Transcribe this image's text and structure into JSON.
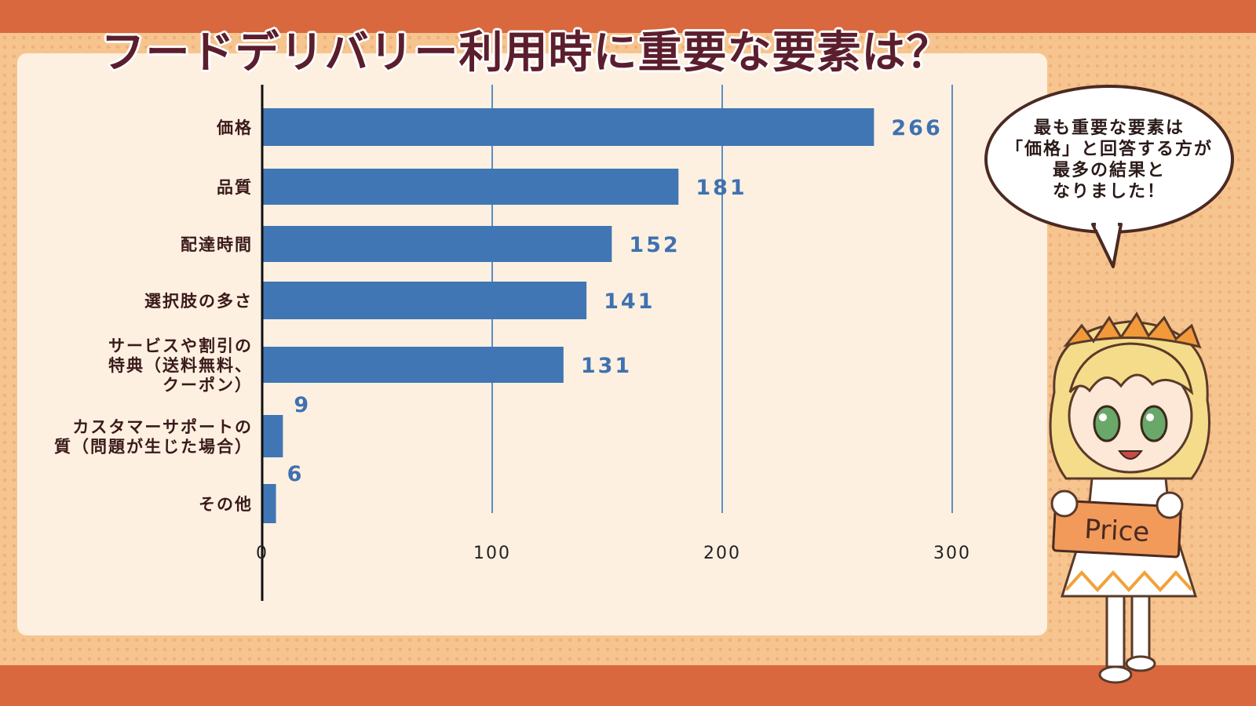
{
  "title": "フードデリバリー利用時に重要な要素は？",
  "bubble": {
    "lines": [
      "最も重要な要素は",
      "「価格」と回答する方が",
      "最多の結果と",
      "なりました！"
    ]
  },
  "mascot": {
    "sign_text": "Price"
  },
  "colors": {
    "bar": "#4076b4",
    "value_label": "#3f71b0",
    "grid": "#5a8fc4",
    "title": "#5b1e2d"
  },
  "chart_data": {
    "type": "bar",
    "orientation": "horizontal",
    "categories": [
      [
        "価格"
      ],
      [
        "品質"
      ],
      [
        "配達時間"
      ],
      [
        "選択肢の多さ"
      ],
      [
        "サービスや割引の",
        "特典（送料無料、",
        "クーポン）"
      ],
      [
        "カスタマーサポートの",
        "質（問題が生じた場合）"
      ],
      [
        "その他"
      ]
    ],
    "values": [
      266,
      181,
      152,
      141,
      131,
      9,
      6
    ],
    "xticks": [
      0,
      100,
      200,
      300
    ],
    "xlim": [
      0,
      300
    ],
    "grid": "vertical",
    "title": "フードデリバリー利用時に重要な要素は？"
  }
}
